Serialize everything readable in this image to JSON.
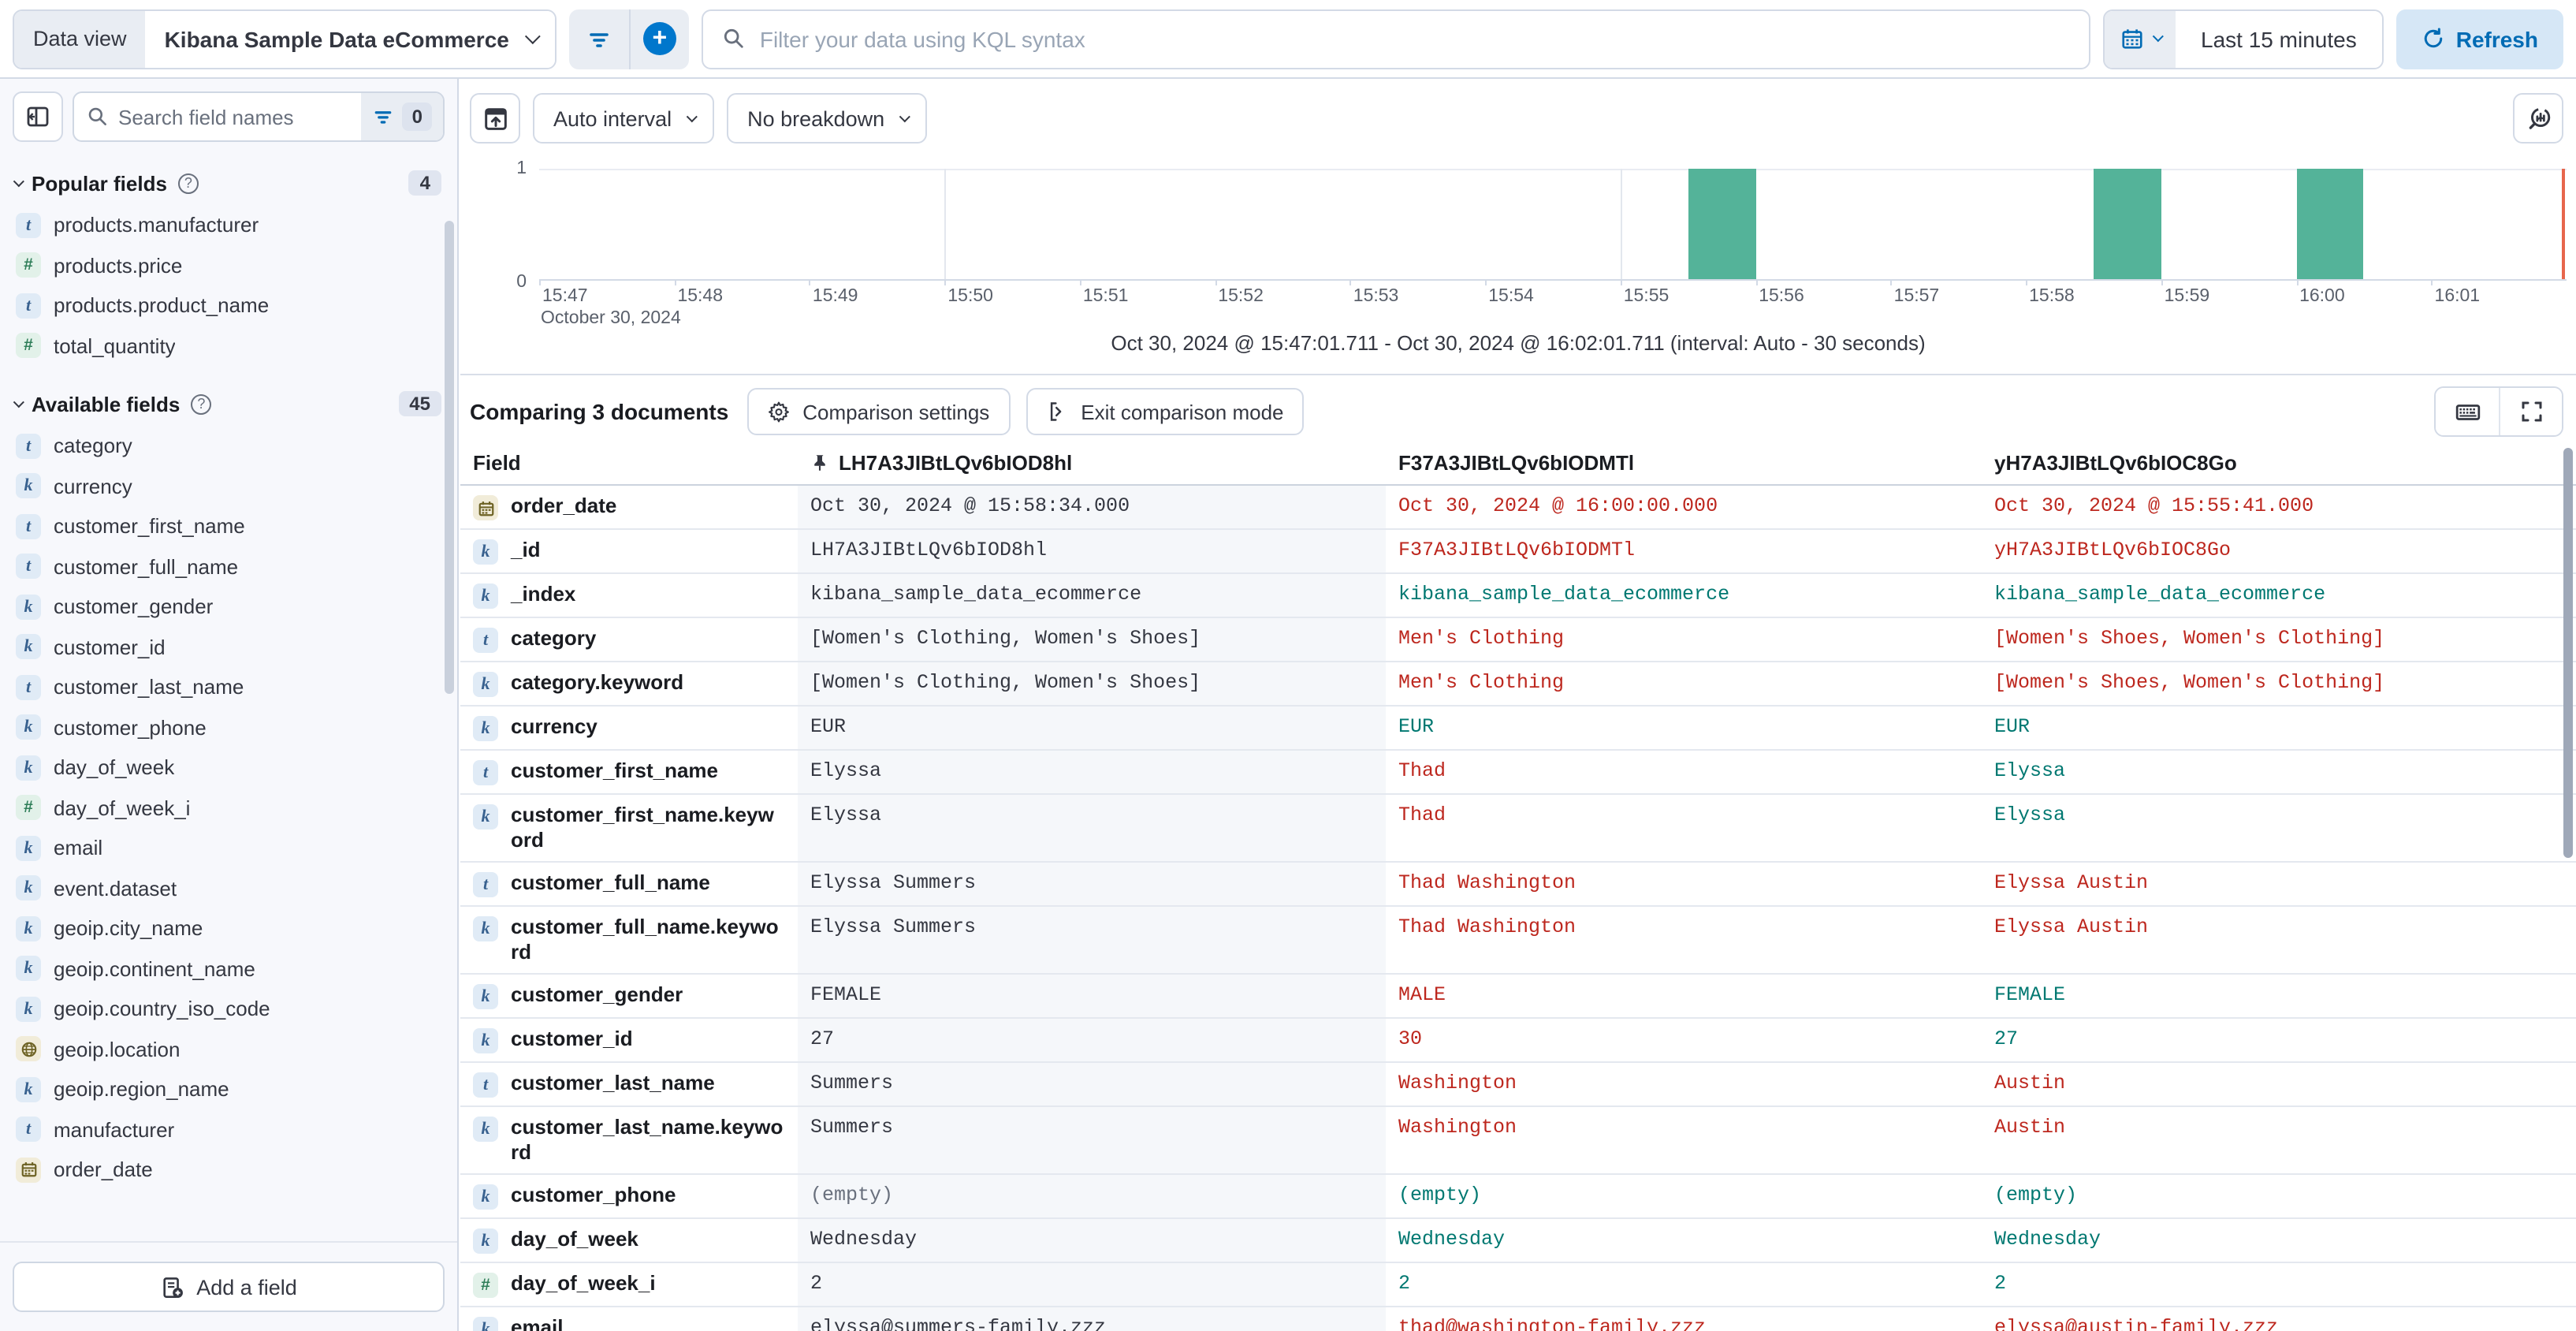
{
  "top_bar": {
    "data_view_label": "Data view",
    "data_view_value": "Kibana Sample Data eCommerce",
    "kql_placeholder": "Filter your data using KQL syntax",
    "time_range": "Last 15 minutes",
    "refresh_label": "Refresh"
  },
  "sidebar": {
    "search_placeholder": "Search field names",
    "filter_count": "0",
    "popular": {
      "title": "Popular fields",
      "count": "4",
      "items": [
        {
          "name": "products.manufacturer",
          "type": "text"
        },
        {
          "name": "products.price",
          "type": "number"
        },
        {
          "name": "products.product_name",
          "type": "text"
        },
        {
          "name": "total_quantity",
          "type": "number"
        }
      ]
    },
    "available": {
      "title": "Available fields",
      "count": "45",
      "items": [
        {
          "name": "category",
          "type": "text"
        },
        {
          "name": "currency",
          "type": "keyword"
        },
        {
          "name": "customer_first_name",
          "type": "text"
        },
        {
          "name": "customer_full_name",
          "type": "text"
        },
        {
          "name": "customer_gender",
          "type": "keyword"
        },
        {
          "name": "customer_id",
          "type": "keyword"
        },
        {
          "name": "customer_last_name",
          "type": "text"
        },
        {
          "name": "customer_phone",
          "type": "keyword"
        },
        {
          "name": "day_of_week",
          "type": "keyword"
        },
        {
          "name": "day_of_week_i",
          "type": "number"
        },
        {
          "name": "email",
          "type": "keyword"
        },
        {
          "name": "event.dataset",
          "type": "keyword"
        },
        {
          "name": "geoip.city_name",
          "type": "keyword"
        },
        {
          "name": "geoip.continent_name",
          "type": "keyword"
        },
        {
          "name": "geoip.country_iso_code",
          "type": "keyword"
        },
        {
          "name": "geoip.location",
          "type": "geo"
        },
        {
          "name": "geoip.region_name",
          "type": "keyword"
        },
        {
          "name": "manufacturer",
          "type": "text"
        },
        {
          "name": "order_date",
          "type": "date"
        }
      ]
    },
    "add_field_label": "Add a field"
  },
  "chart_toolbar": {
    "interval_label": "Auto interval",
    "breakdown_label": "No breakdown"
  },
  "chart_data": {
    "type": "bar",
    "x_start": "15:47",
    "x_end": "16:02",
    "x_ticks": [
      "15:47",
      "15:48",
      "15:49",
      "15:50",
      "15:51",
      "15:52",
      "15:53",
      "15:54",
      "15:55",
      "15:56",
      "15:57",
      "15:58",
      "15:59",
      "16:00",
      "16:01"
    ],
    "x_date_label": "October 30, 2024",
    "y_ticks": [
      "1",
      "0"
    ],
    "ylim": [
      0,
      1
    ],
    "gridlines": [
      "15:50",
      "15:55",
      "16:00"
    ],
    "bars": [
      {
        "start": "15:55:30",
        "end": "15:56:00",
        "value": 1
      },
      {
        "start": "15:58:30",
        "end": "15:59:00",
        "value": 1
      },
      {
        "start": "16:00:00",
        "end": "16:00:30",
        "value": 1
      }
    ],
    "current_time_marker": "16:02",
    "interval": "Auto - 30 seconds"
  },
  "caption": "Oct 30, 2024 @ 15:47:01.711 - Oct 30, 2024 @ 16:02:01.711 (interval: Auto - 30 seconds)",
  "comparison": {
    "title": "Comparing 3 documents",
    "settings_label": "Comparison settings",
    "exit_label": "Exit comparison mode"
  },
  "table": {
    "field_header": "Field",
    "doc_headers": [
      "LH7A3JIBtLQv6bIOD8hl",
      "F37A3JIBtLQv6bIODMTl",
      "yH7A3JIBtLQv6bIOC8Go"
    ],
    "rows": [
      {
        "field": "order_date",
        "type": "date",
        "cells": [
          {
            "text": "Oct 30, 2024 @ 15:58:34.000",
            "tone": "base"
          },
          {
            "text": "Oct 30, 2024 @ 16:00:00.000",
            "tone": "diff"
          },
          {
            "text": "Oct 30, 2024 @ 15:55:41.000",
            "tone": "diff"
          }
        ]
      },
      {
        "field": "_id",
        "type": "keyword",
        "cells": [
          {
            "text": "LH7A3JIBtLQv6bIOD8hl",
            "tone": "base"
          },
          {
            "text": "F37A3JIBtLQv6bIODMTl",
            "tone": "diff"
          },
          {
            "text": "yH7A3JIBtLQv6bIOC8Go",
            "tone": "diff"
          }
        ]
      },
      {
        "field": "_index",
        "type": "keyword",
        "cells": [
          {
            "text": "kibana_sample_data_ecommerce",
            "tone": "base"
          },
          {
            "text": "kibana_sample_data_ecommerce",
            "tone": "match"
          },
          {
            "text": "kibana_sample_data_ecommerce",
            "tone": "match"
          }
        ]
      },
      {
        "field": "category",
        "type": "text",
        "cells": [
          {
            "text": "[Women's Clothing, Women's Shoes]",
            "tone": "base"
          },
          {
            "text": "Men's Clothing",
            "tone": "diff"
          },
          {
            "text": "[Women's Shoes, Women's Clothing]",
            "tone": "diff"
          }
        ]
      },
      {
        "field": "category.keyword",
        "type": "keyword",
        "cells": [
          {
            "text": "[Women's Clothing, Women's Shoes]",
            "tone": "base"
          },
          {
            "text": "Men's Clothing",
            "tone": "diff"
          },
          {
            "text": "[Women's Shoes, Women's Clothing]",
            "tone": "diff"
          }
        ]
      },
      {
        "field": "currency",
        "type": "keyword",
        "cells": [
          {
            "text": "EUR",
            "tone": "base"
          },
          {
            "text": "EUR",
            "tone": "match"
          },
          {
            "text": "EUR",
            "tone": "match"
          }
        ]
      },
      {
        "field": "customer_first_name",
        "type": "text",
        "cells": [
          {
            "text": "Elyssa",
            "tone": "base"
          },
          {
            "text": "Thad",
            "tone": "diff"
          },
          {
            "text": "Elyssa",
            "tone": "match"
          }
        ]
      },
      {
        "field": "customer_first_name.keyword",
        "type": "keyword",
        "cells": [
          {
            "text": "Elyssa",
            "tone": "base"
          },
          {
            "text": "Thad",
            "tone": "diff"
          },
          {
            "text": "Elyssa",
            "tone": "match"
          }
        ]
      },
      {
        "field": "customer_full_name",
        "type": "text",
        "cells": [
          {
            "text": "Elyssa Summers",
            "tone": "base"
          },
          {
            "text": "Thad Washington",
            "tone": "diff"
          },
          {
            "text": "Elyssa Austin",
            "tone": "diff"
          }
        ]
      },
      {
        "field": "customer_full_name.keyword",
        "type": "keyword",
        "cells": [
          {
            "text": "Elyssa Summers",
            "tone": "base"
          },
          {
            "text": "Thad Washington",
            "tone": "diff"
          },
          {
            "text": "Elyssa Austin",
            "tone": "diff"
          }
        ]
      },
      {
        "field": "customer_gender",
        "type": "keyword",
        "cells": [
          {
            "text": "FEMALE",
            "tone": "base"
          },
          {
            "text": "MALE",
            "tone": "diff"
          },
          {
            "text": "FEMALE",
            "tone": "match"
          }
        ]
      },
      {
        "field": "customer_id",
        "type": "keyword",
        "cells": [
          {
            "text": "27",
            "tone": "base"
          },
          {
            "text": "30",
            "tone": "diff"
          },
          {
            "text": "27",
            "tone": "match"
          }
        ]
      },
      {
        "field": "customer_last_name",
        "type": "text",
        "cells": [
          {
            "text": "Summers",
            "tone": "base"
          },
          {
            "text": "Washington",
            "tone": "diff"
          },
          {
            "text": "Austin",
            "tone": "diff"
          }
        ]
      },
      {
        "field": "customer_last_name.keyword",
        "type": "keyword",
        "cells": [
          {
            "text": "Summers",
            "tone": "base"
          },
          {
            "text": "Washington",
            "tone": "diff"
          },
          {
            "text": "Austin",
            "tone": "diff"
          }
        ]
      },
      {
        "field": "customer_phone",
        "type": "keyword",
        "cells": [
          {
            "text": "(empty)",
            "tone": "muted"
          },
          {
            "text": "(empty)",
            "tone": "match"
          },
          {
            "text": "(empty)",
            "tone": "match"
          }
        ]
      },
      {
        "field": "day_of_week",
        "type": "keyword",
        "cells": [
          {
            "text": "Wednesday",
            "tone": "base"
          },
          {
            "text": "Wednesday",
            "tone": "match"
          },
          {
            "text": "Wednesday",
            "tone": "match"
          }
        ]
      },
      {
        "field": "day_of_week_i",
        "type": "number",
        "cells": [
          {
            "text": "2",
            "tone": "base"
          },
          {
            "text": "2",
            "tone": "match"
          },
          {
            "text": "2",
            "tone": "match"
          }
        ]
      },
      {
        "field": "email",
        "type": "keyword",
        "cells": [
          {
            "text": "elyssa@summers-family.zzz",
            "tone": "base"
          },
          {
            "text": "thad@washington-family.zzz",
            "tone": "diff"
          },
          {
            "text": "elyssa@austin-family.zzz",
            "tone": "diff"
          }
        ]
      }
    ]
  },
  "colors": {
    "accent_blue": "#006bb4",
    "bar_green": "#54b399",
    "diff_red": "#bd271e",
    "match_teal": "#007871",
    "muted_gray": "#69707d",
    "now_marker": "#e7664c"
  }
}
